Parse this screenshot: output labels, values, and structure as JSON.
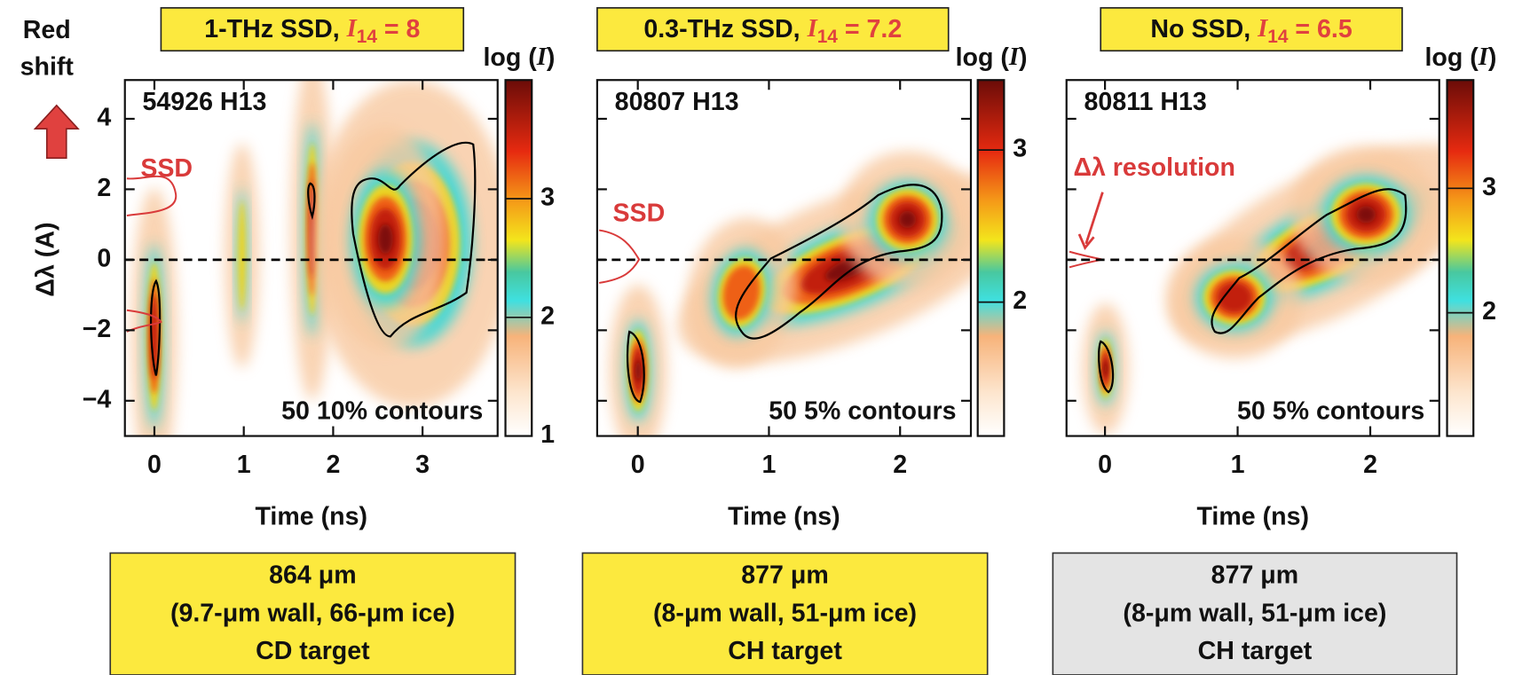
{
  "chart_data": [
    {
      "type": "heatmap",
      "title_parts": [
        "1-THz SSD, ",
        "I",
        "14",
        " = 8"
      ],
      "shot": "54926 H13",
      "contour_note": "50 10% contours",
      "annotation": "SSD",
      "side_note": [
        "Red",
        "shift"
      ],
      "ylabel": "Δλ (A)",
      "xlabel": "Time (ns)",
      "xlim": [
        -0.33,
        3.84
      ],
      "xticks": [
        0,
        1,
        2,
        3
      ],
      "ylim": [
        -5,
        5.1
      ],
      "yticks": [
        {
          "value": -4,
          "label": "−4"
        },
        {
          "value": -2,
          "label": "−2"
        },
        0,
        2,
        4
      ],
      "reference_line": 0,
      "colorbar_label_parts": [
        "log (",
        "I",
        ")"
      ],
      "colorbar_lim": [
        1,
        4
      ],
      "colorbar_ticks": [
        1,
        2,
        3
      ],
      "target": [
        "864 μm",
        "(9.7-μm wall, 66-μm ice)",
        "CD target"
      ],
      "target_color": "#fce93e"
    },
    {
      "type": "heatmap",
      "title_parts": [
        "0.3-THz SSD, ",
        "I",
        "14",
        " = 7.2"
      ],
      "shot": "80807 H13",
      "contour_note": "50 5% contours",
      "annotation": "SSD",
      "xlabel": "Time (ns)",
      "xlim": [
        -0.31,
        2.54
      ],
      "xticks": [
        0,
        1,
        2
      ],
      "ylim": [
        -5,
        5.1
      ],
      "yticks": [
        -4,
        -2,
        0,
        2,
        4
      ],
      "reference_line": 0,
      "colorbar_label_parts": [
        "log (",
        "I",
        ")"
      ],
      "colorbar_lim": [
        1.12,
        3.46
      ],
      "colorbar_ticks": [
        2,
        3
      ],
      "target": [
        "877 μm",
        "(8-μm wall, 51-μm ice)",
        "CH target"
      ],
      "target_color": "#fce93e"
    },
    {
      "type": "heatmap",
      "title_parts": [
        "No SSD, ",
        "I",
        "14",
        " = 6.5"
      ],
      "shot": "80811 H13",
      "contour_note": "50 5% contours",
      "annotation": "Δλ  resolution",
      "xlabel": "Time (ns)",
      "xlim": [
        -0.29,
        2.52
      ],
      "xticks": [
        0,
        1,
        2
      ],
      "ylim": [
        -5,
        5.1
      ],
      "yticks": [
        -4,
        -2,
        0,
        2,
        4
      ],
      "reference_line": 0,
      "colorbar_label_parts": [
        "log (",
        "I",
        ")"
      ],
      "colorbar_lim": [
        1.01,
        3.87
      ],
      "colorbar_ticks": [
        2,
        3
      ],
      "target": [
        "877 μm",
        "(8-μm wall, 51-μm ice)",
        "CH target"
      ],
      "target_color": "#e4e4e4"
    }
  ]
}
